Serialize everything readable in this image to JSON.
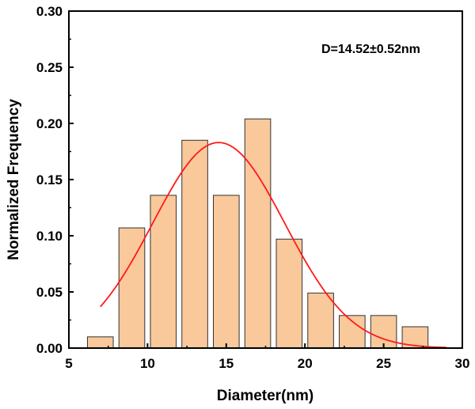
{
  "chart_data": {
    "type": "bar",
    "title": "",
    "xlabel": "Diameter(nm)",
    "ylabel": "Normalized Frequency",
    "xlim": [
      5,
      30
    ],
    "ylim": [
      0,
      0.3
    ],
    "x_ticks": [
      "5",
      "10",
      "15",
      "20",
      "25",
      "30"
    ],
    "y_ticks": [
      "0.00",
      "0.05",
      "0.10",
      "0.15",
      "0.20",
      "0.25",
      "0.30"
    ],
    "bin_width": 2,
    "bin_centers": [
      7,
      9,
      11,
      13,
      15,
      17,
      19,
      21,
      23,
      25,
      27
    ],
    "values": [
      0.01,
      0.107,
      0.136,
      0.185,
      0.136,
      0.204,
      0.097,
      0.049,
      0.029,
      0.029,
      0.019
    ],
    "fit": {
      "type": "gaussian",
      "mean": 14.52,
      "sigma": 4.2,
      "amplitude": 0.183,
      "x_range": [
        7,
        29
      ]
    },
    "annotation": "D=14.52±0.52nm",
    "grid": false,
    "colors": {
      "bar_fill": "#F9C89B",
      "bar_stroke": "#333333",
      "fit_line": "#FF1A1A"
    }
  }
}
